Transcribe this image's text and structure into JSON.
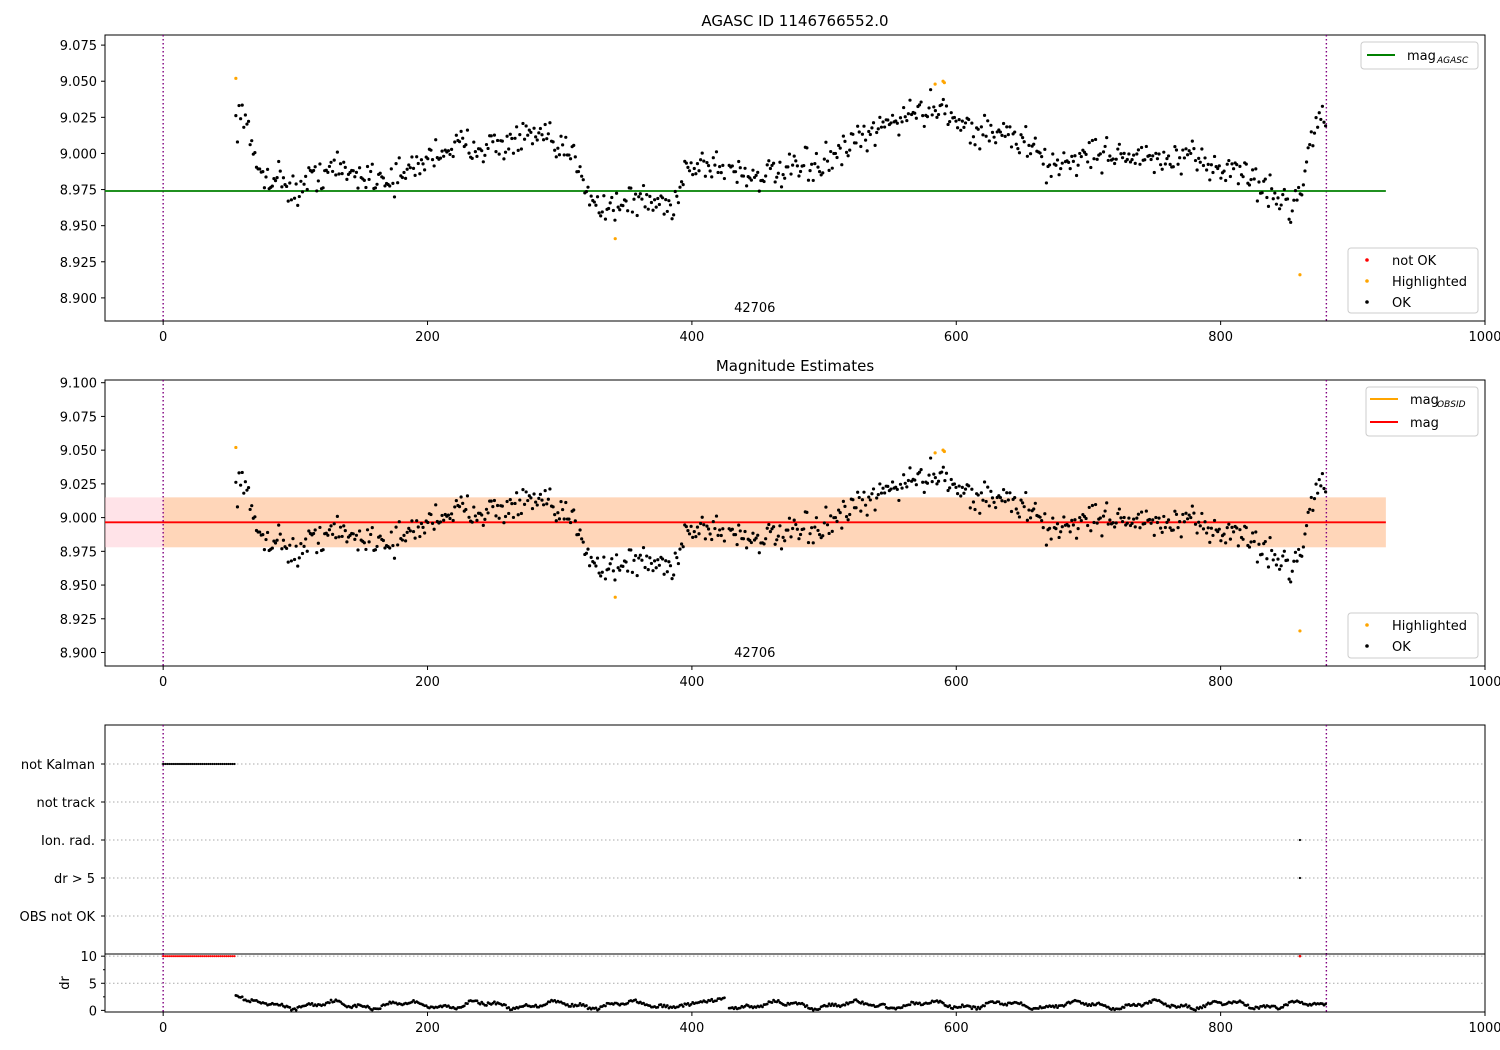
{
  "chart_data": [
    {
      "type": "scatter",
      "title": "AGASC ID 1146766552.0",
      "xlim": [
        -44,
        1000
      ],
      "ylim": [
        8.884,
        9.082
      ],
      "xticks": [
        0,
        200,
        400,
        600,
        800,
        1000
      ],
      "yticks": [
        8.9,
        8.925,
        8.95,
        8.975,
        9.0,
        9.025,
        9.05,
        9.075
      ],
      "vlines": [
        0,
        880
      ],
      "hline": {
        "label": "mag",
        "sub": "AGASC",
        "y": 8.974,
        "color": "#008000"
      },
      "annotation": {
        "text": "42706",
        "x": 440
      },
      "legend_lines": [
        {
          "label": "mag",
          "sub": "AGASC",
          "color": "#008000"
        }
      ],
      "legend_points": [
        {
          "label": "not OK",
          "color": "#ff0000"
        },
        {
          "label": "Highlighted",
          "color": "#ffa500"
        },
        {
          "label": "OK",
          "color": "#000000"
        }
      ],
      "highlighted_points": [
        [
          55,
          9.052
        ],
        [
          342,
          8.941
        ],
        [
          584,
          9.048
        ],
        [
          590,
          9.05
        ],
        [
          591,
          9.049
        ],
        [
          860,
          8.916
        ]
      ],
      "ok_series_shape": [
        [
          55,
          9.022
        ],
        [
          62,
          9.03
        ],
        [
          68,
          8.995
        ],
        [
          76,
          8.985
        ],
        [
          90,
          8.983
        ],
        [
          100,
          8.972
        ],
        [
          115,
          8.985
        ],
        [
          130,
          8.99
        ],
        [
          145,
          8.985
        ],
        [
          160,
          8.985
        ],
        [
          175,
          8.982
        ],
        [
          190,
          8.99
        ],
        [
          205,
          9.0
        ],
        [
          220,
          9.005
        ],
        [
          240,
          9.006
        ],
        [
          255,
          9.005
        ],
        [
          270,
          9.01
        ],
        [
          285,
          9.012
        ],
        [
          300,
          9.002
        ],
        [
          312,
          8.998
        ],
        [
          322,
          8.975
        ],
        [
          330,
          8.962
        ],
        [
          345,
          8.965
        ],
        [
          360,
          8.968
        ],
        [
          372,
          8.966
        ],
        [
          385,
          8.962
        ],
        [
          395,
          8.99
        ],
        [
          410,
          8.993
        ],
        [
          425,
          8.99
        ],
        [
          445,
          8.985
        ],
        [
          465,
          8.985
        ],
        [
          485,
          8.99
        ],
        [
          505,
          8.995
        ],
        [
          520,
          9.005
        ],
        [
          535,
          9.012
        ],
        [
          550,
          9.022
        ],
        [
          565,
          9.028
        ],
        [
          580,
          9.03
        ],
        [
          590,
          9.035
        ],
        [
          600,
          9.022
        ],
        [
          615,
          9.015
        ],
        [
          630,
          9.015
        ],
        [
          645,
          9.01
        ],
        [
          658,
          9.005
        ],
        [
          668,
          8.99
        ],
        [
          685,
          8.995
        ],
        [
          705,
          9.0
        ],
        [
          725,
          9.0
        ],
        [
          745,
          8.995
        ],
        [
          765,
          8.995
        ],
        [
          785,
          8.995
        ],
        [
          800,
          8.99
        ],
        [
          815,
          8.988
        ],
        [
          828,
          8.98
        ],
        [
          840,
          8.97
        ],
        [
          855,
          8.965
        ],
        [
          862,
          8.975
        ],
        [
          868,
          9.015
        ],
        [
          876,
          9.025
        ],
        [
          880,
          9.03
        ]
      ]
    },
    {
      "type": "scatter",
      "title": "Magnitude Estimates",
      "xlim": [
        -44,
        1000
      ],
      "ylim": [
        8.89,
        9.102
      ],
      "xticks": [
        0,
        200,
        400,
        600,
        800,
        1000
      ],
      "yticks": [
        8.9,
        8.925,
        8.95,
        8.975,
        9.0,
        9.025,
        9.05,
        9.075,
        9.1
      ],
      "vlines": [
        0,
        880
      ],
      "hline": {
        "label": "mag",
        "y": 8.9965,
        "color": "#ff0000"
      },
      "band_outer": [
        8.978,
        9.015
      ],
      "band_inner": [
        8.978,
        9.015
      ],
      "band_inner_x": [
        0,
        925
      ],
      "annotation": {
        "text": "42706",
        "x": 440
      },
      "legend_lines": [
        {
          "label": "mag",
          "sub": "OBSID",
          "color": "#ffa500"
        },
        {
          "label": "mag",
          "color": "#ff0000"
        }
      ],
      "legend_points": [
        {
          "label": "Highlighted",
          "color": "#ffa500"
        },
        {
          "label": "OK",
          "color": "#000000"
        }
      ],
      "highlighted_points": [
        [
          55,
          9.052
        ],
        [
          342,
          8.941
        ],
        [
          584,
          9.048
        ],
        [
          590,
          9.05
        ],
        [
          591,
          9.049
        ],
        [
          860,
          8.916
        ]
      ]
    },
    {
      "type": "scatter",
      "title": "",
      "xlim": [
        -44,
        1000
      ],
      "categories": [
        "not Kalman",
        "not track",
        "Ion. rad.",
        "dr > 5",
        "OBS not OK"
      ],
      "flags": {
        "not Kalman": [
          [
            0,
            54
          ]
        ],
        "Ion. rad.": [
          [
            860,
            860
          ]
        ],
        "dr > 5": [
          [
            860,
            860
          ]
        ]
      },
      "vlines": [
        0,
        880
      ]
    },
    {
      "type": "scatter",
      "title": "",
      "ylabel": "dr",
      "xlim": [
        -44,
        1000
      ],
      "ylim": [
        -0.3,
        10.4
      ],
      "xticks": [
        0,
        200,
        400,
        600,
        800,
        1000
      ],
      "yticks": [
        0,
        5,
        10
      ],
      "vlines": [
        0,
        880
      ],
      "clipped_points": {
        "x_range": [
          0,
          54
        ],
        "y": 10,
        "extra": [
          860
        ],
        "color": "#ff0000"
      }
    }
  ]
}
